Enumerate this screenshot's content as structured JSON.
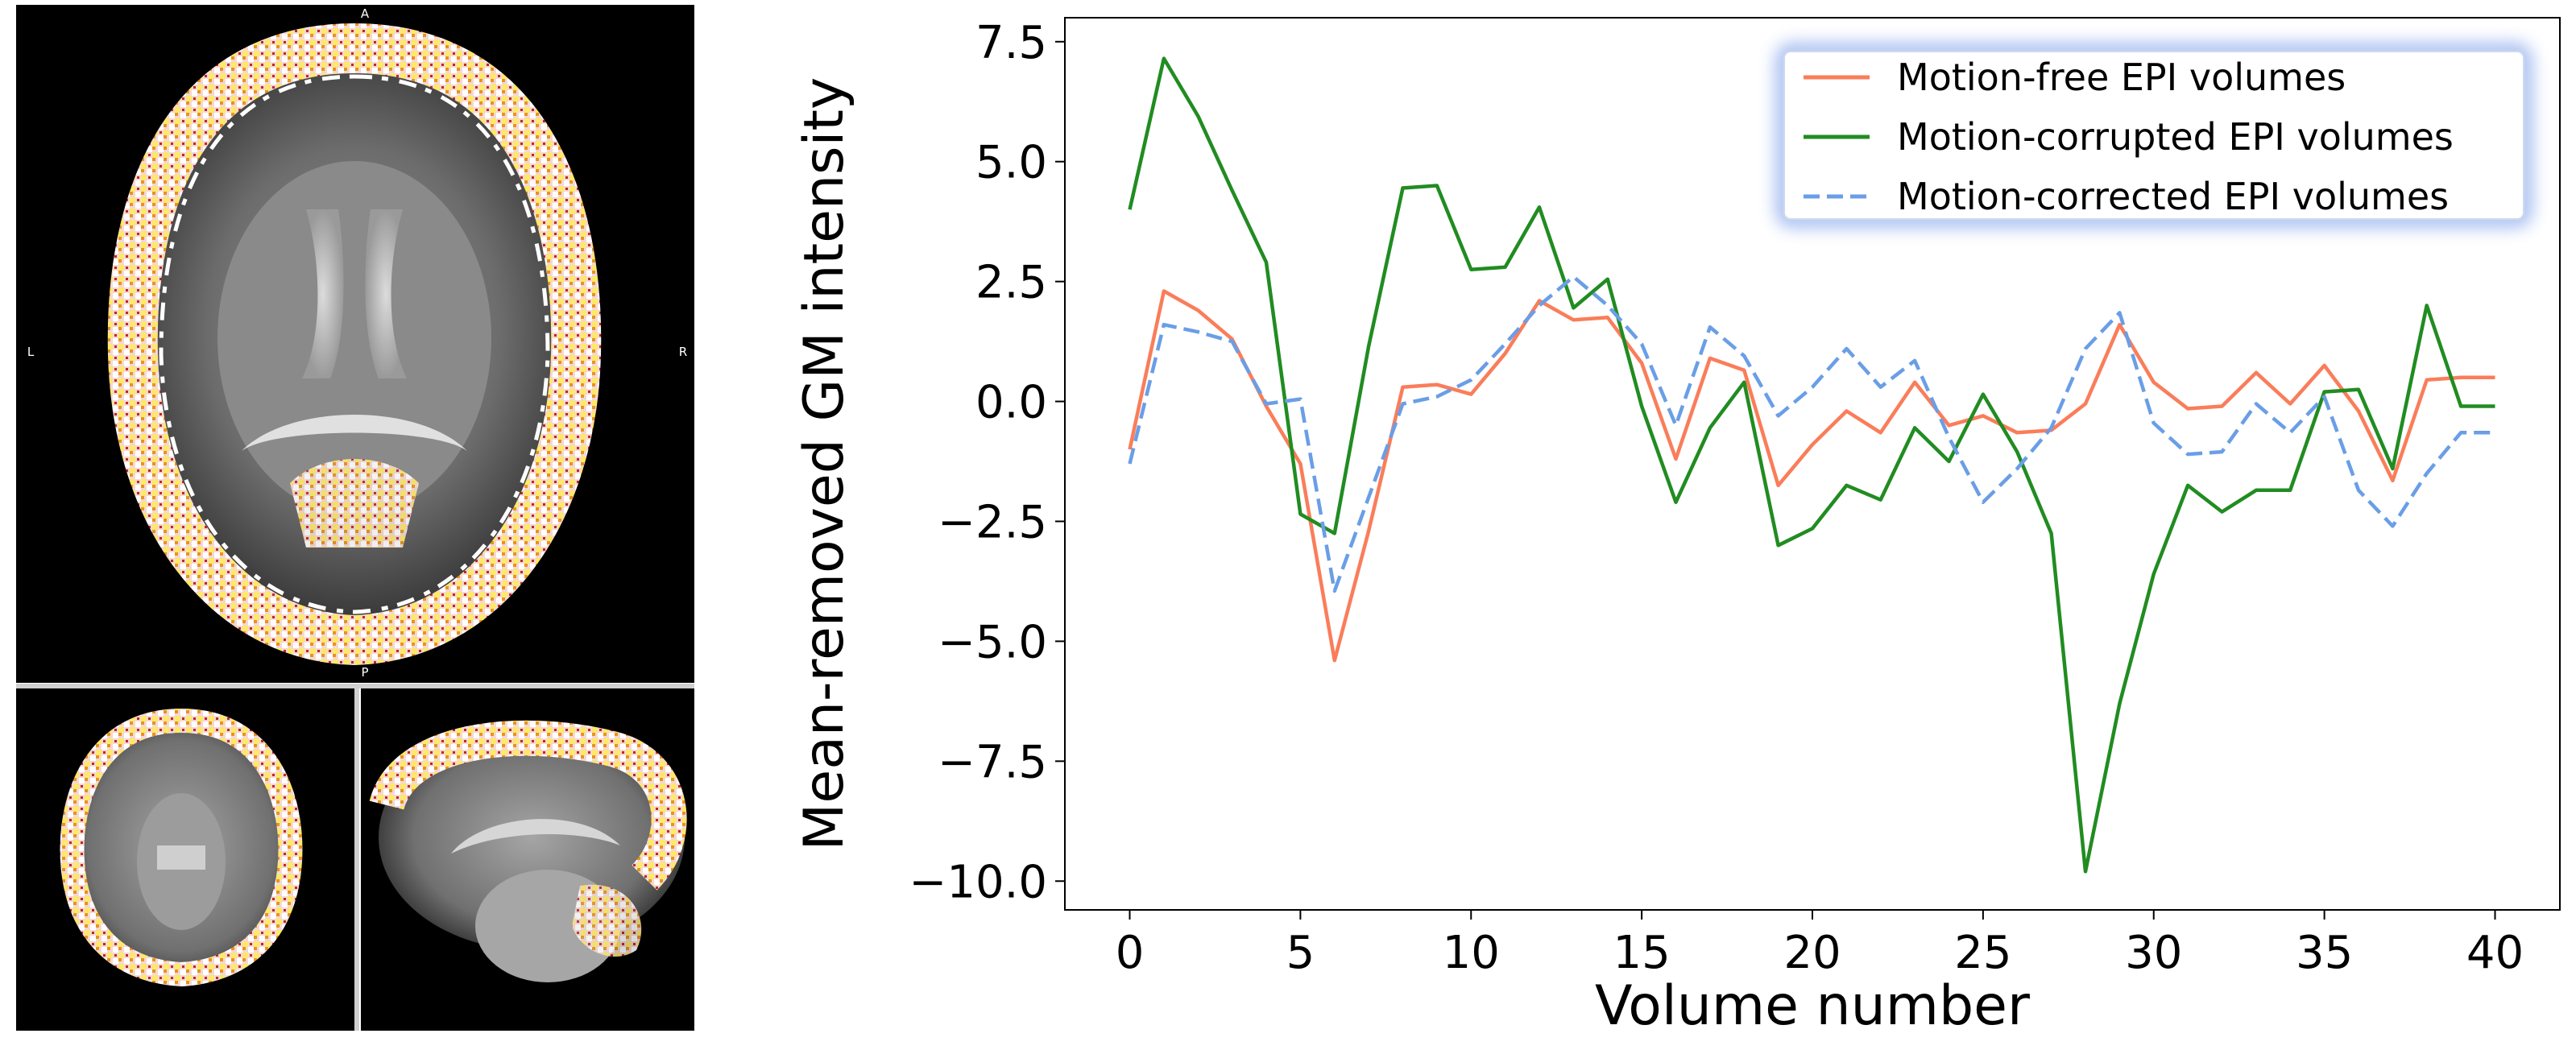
{
  "brain_views": {
    "axial_labels": {
      "top": "A",
      "bottom": "P",
      "left": "L",
      "right": "R"
    }
  },
  "chart_data": {
    "type": "line",
    "xlabel": "Volume number",
    "ylabel": "Mean-removed GM intensity",
    "xlim": [
      -1.9,
      41.9
    ],
    "ylim": [
      -10.6,
      8.0
    ],
    "x_ticks": [
      0,
      5,
      10,
      15,
      20,
      25,
      30,
      35,
      40
    ],
    "y_ticks": [
      -10.0,
      -7.5,
      -5.0,
      -2.5,
      0.0,
      2.5,
      5.0,
      7.5
    ],
    "x_tick_labels": [
      "0",
      "5",
      "10",
      "15",
      "20",
      "25",
      "30",
      "35",
      "40"
    ],
    "y_tick_labels": [
      "−10.0",
      "−7.5",
      "−5.0",
      "−2.5",
      "0.0",
      "2.5",
      "5.0",
      "7.5"
    ],
    "grid": false,
    "legend_position": "top-right",
    "x": [
      0,
      1,
      2,
      3,
      4,
      5,
      6,
      7,
      8,
      9,
      10,
      11,
      12,
      13,
      14,
      15,
      16,
      17,
      18,
      19,
      20,
      21,
      22,
      23,
      24,
      25,
      26,
      27,
      28,
      29,
      30,
      31,
      32,
      33,
      34,
      35,
      36,
      37,
      38,
      39,
      40
    ],
    "series": [
      {
        "name": "Motion-free EPI volumes",
        "color": "#fa7d5a",
        "dash": "solid",
        "values": [
          -1.0,
          2.3,
          1.9,
          1.3,
          -0.1,
          -1.3,
          -5.4,
          -2.7,
          0.3,
          0.35,
          0.15,
          1.0,
          2.1,
          1.7,
          1.75,
          0.8,
          -1.2,
          0.9,
          0.65,
          -1.75,
          -0.9,
          -0.2,
          -0.65,
          0.4,
          -0.5,
          -0.3,
          -0.65,
          -0.6,
          -0.05,
          1.6,
          0.4,
          -0.15,
          -0.1,
          0.6,
          -0.05,
          0.75,
          -0.2,
          -1.65,
          0.45,
          0.5,
          0.5
        ]
      },
      {
        "name": "Motion-corrupted EPI volumes",
        "color": "#218c21",
        "dash": "solid",
        "values": [
          4.0,
          7.15,
          5.95,
          4.4,
          2.9,
          -2.35,
          -2.75,
          1.15,
          4.45,
          4.5,
          2.75,
          2.8,
          4.05,
          1.95,
          2.55,
          -0.1,
          -2.1,
          -0.55,
          0.4,
          -3.0,
          -2.65,
          -1.75,
          -2.05,
          -0.55,
          -1.25,
          0.15,
          -1.05,
          -2.75,
          -9.8,
          -6.3,
          -3.6,
          -1.75,
          -2.3,
          -1.85,
          -1.85,
          0.2,
          0.25,
          -1.4,
          2.0,
          -0.1,
          -0.1
        ]
      },
      {
        "name": "Motion-corrected EPI volumes",
        "color": "#6a9ee6",
        "dash": "dashed",
        "values": [
          -1.3,
          1.6,
          1.45,
          1.25,
          -0.05,
          0.05,
          -3.95,
          -2.0,
          -0.05,
          0.1,
          0.45,
          1.2,
          2.0,
          2.6,
          2.0,
          1.2,
          -0.5,
          1.55,
          0.95,
          -0.3,
          0.3,
          1.1,
          0.3,
          0.85,
          -0.75,
          -2.1,
          -1.4,
          -0.55,
          1.1,
          1.85,
          -0.45,
          -1.1,
          -1.05,
          -0.05,
          -0.65,
          0.1,
          -1.85,
          -2.6,
          -1.5,
          -0.65,
          -0.65
        ]
      }
    ]
  }
}
